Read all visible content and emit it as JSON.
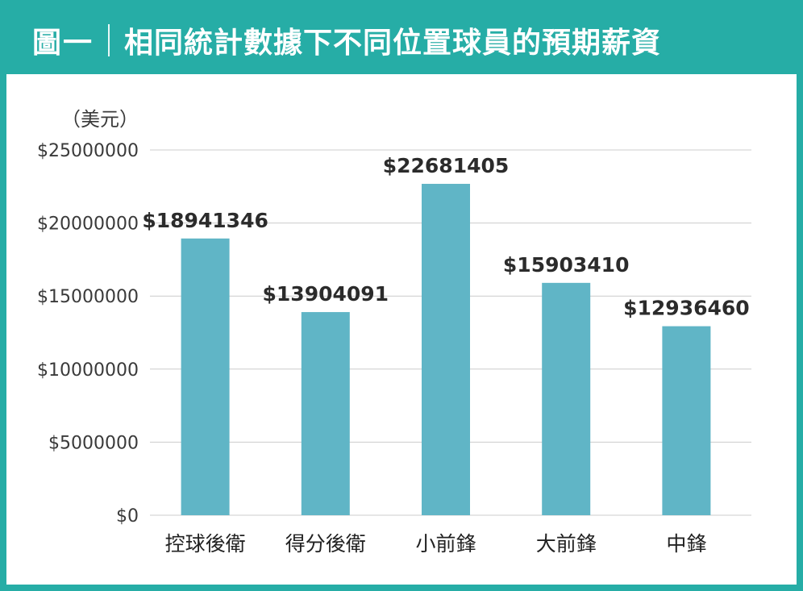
{
  "header": {
    "figure_label": "圖一",
    "title": "相同統計數據下不同位置球員的預期薪資"
  },
  "colors": {
    "frame": "#26ada6",
    "bar": "#60b5c6",
    "grid": "#cccccc"
  },
  "chart_data": {
    "type": "bar",
    "title": "相同統計數據下不同位置球員的預期薪資",
    "ylabel": "（美元）",
    "xlabel": "",
    "categories": [
      "控球後衛",
      "得分後衛",
      "小前鋒",
      "大前鋒",
      "中鋒"
    ],
    "values": [
      18941346,
      13904091,
      22681405,
      15903410,
      12936460
    ],
    "value_labels": [
      "$18941346",
      "$13904091",
      "$22681405",
      "$15903410",
      "$12936460"
    ],
    "ylim": [
      0,
      25000000
    ],
    "yticks": [
      0,
      5000000,
      10000000,
      15000000,
      20000000,
      25000000
    ],
    "ytick_labels": [
      "$0",
      "$5000000",
      "$10000000",
      "$15000000",
      "$20000000",
      "$25000000"
    ],
    "grid": true,
    "legend": "none"
  }
}
